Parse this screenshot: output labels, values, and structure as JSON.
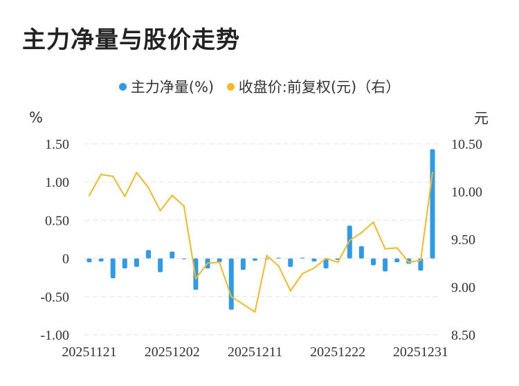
{
  "title": "主力净量与股价走势",
  "colors": {
    "bar": "#2e9be9",
    "line": "#f5b921",
    "grid": "#e3e3e3",
    "text": "#333333"
  },
  "chart_data": {
    "type": "bar+line",
    "legend": [
      {
        "name": "主力净量(%)",
        "color": "#2e9be9",
        "type": "bar"
      },
      {
        "name": "收盘价:前复权(元)（右）",
        "color": "#f5b921",
        "type": "line"
      }
    ],
    "left_axis": {
      "unit": "%",
      "ticks": [
        "1.50",
        "1.00",
        "0.50",
        "0",
        "-0.50",
        "-1.00"
      ],
      "range": [
        -1.0,
        1.5
      ]
    },
    "right_axis": {
      "unit": "元",
      "ticks": [
        "10.50",
        "10.00",
        "9.50",
        "9.00",
        "8.50"
      ],
      "range": [
        8.5,
        10.5
      ]
    },
    "x_tick_labels": [
      "20251121",
      "20251202",
      "20251211",
      "20251222",
      "20251231"
    ],
    "x_tick_index": [
      0,
      7,
      14,
      21,
      28
    ],
    "grid": true,
    "series": [
      {
        "name": "主力净量(%)",
        "type": "bar",
        "axis": "left",
        "values": [
          -0.05,
          -0.04,
          -0.26,
          -0.13,
          -0.11,
          0.11,
          -0.18,
          0.09,
          -0.01,
          -0.41,
          -0.13,
          -0.05,
          -0.67,
          -0.15,
          -0.03,
          0.0,
          0.01,
          -0.11,
          0.01,
          -0.04,
          -0.13,
          -0.02,
          0.43,
          0.16,
          -0.09,
          -0.17,
          -0.05,
          -0.07,
          -0.16,
          1.43
        ]
      },
      {
        "name": "收盘价:前复权(元)（右）",
        "type": "line",
        "axis": "right",
        "values": [
          9.96,
          10.18,
          10.16,
          9.95,
          10.2,
          10.04,
          9.8,
          9.96,
          9.85,
          9.09,
          9.25,
          9.26,
          8.9,
          8.82,
          8.74,
          9.33,
          9.22,
          8.96,
          9.14,
          9.2,
          9.3,
          9.26,
          9.49,
          9.57,
          9.68,
          9.4,
          9.41,
          9.26,
          9.28,
          10.2
        ]
      }
    ]
  }
}
